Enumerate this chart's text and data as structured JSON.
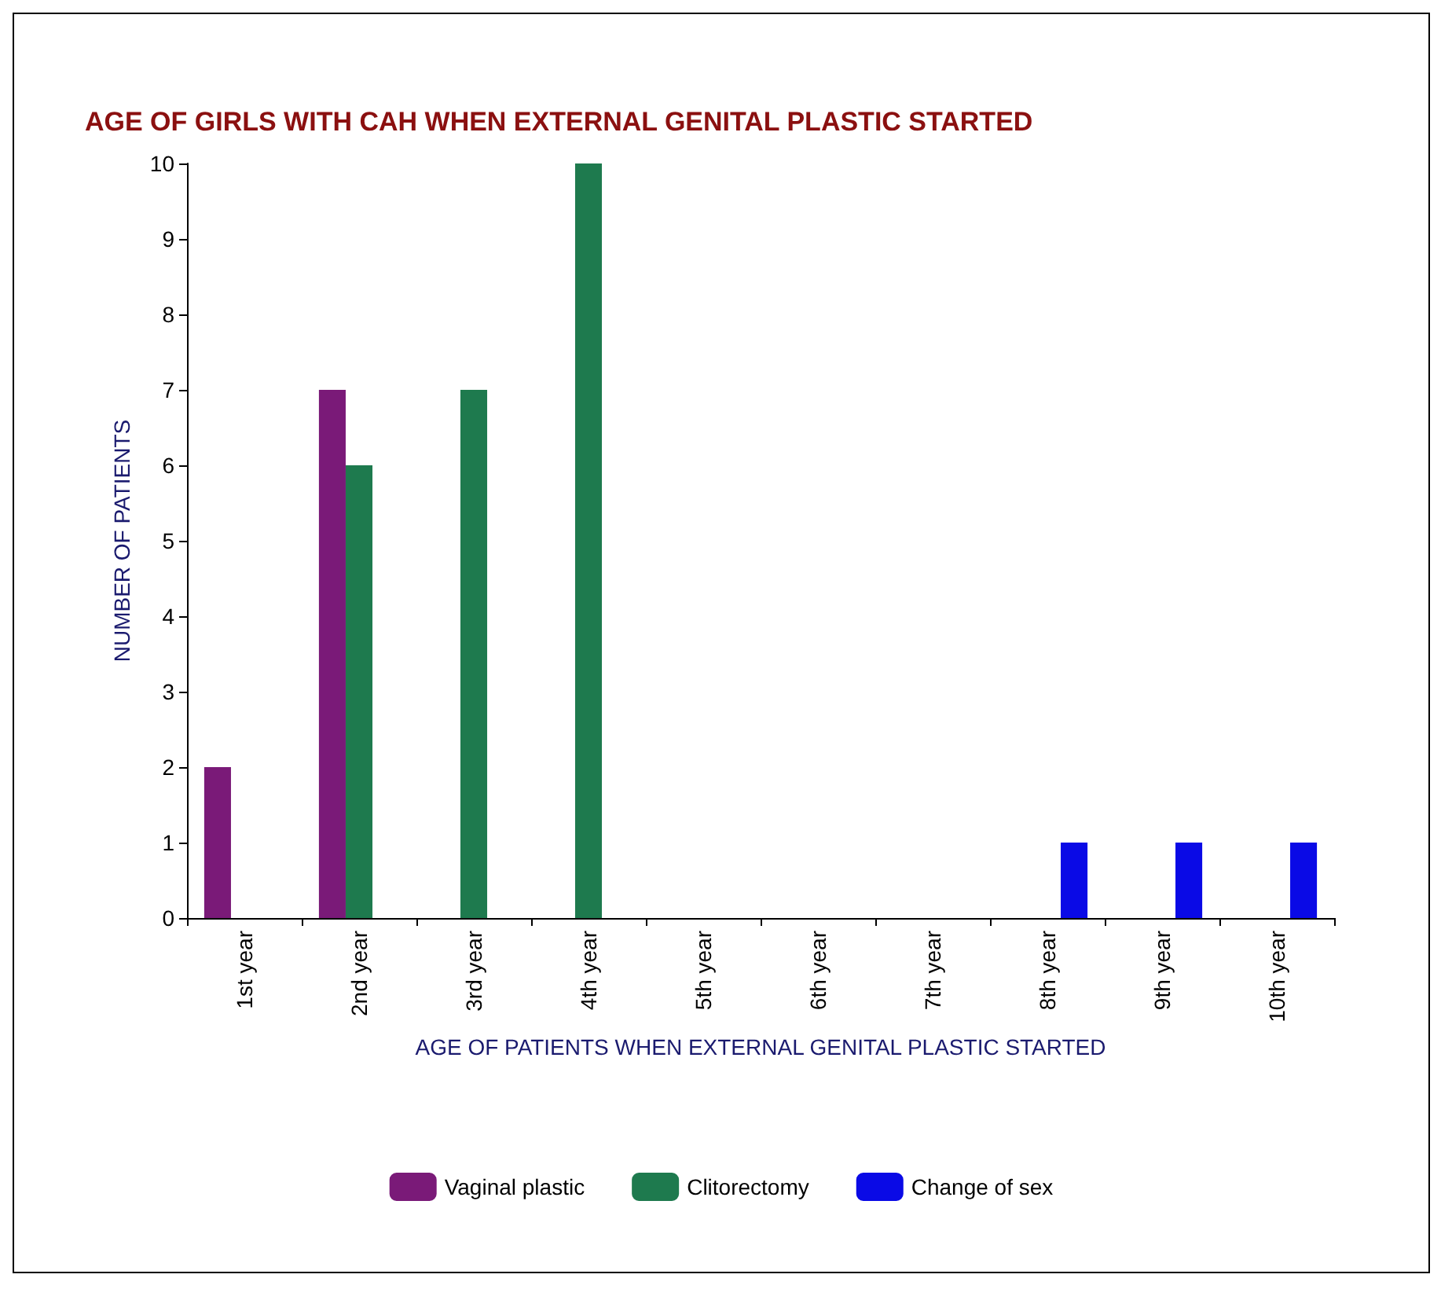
{
  "chart_data": {
    "type": "bar",
    "title": "AGE OF GIRLS WITH CAH WHEN EXTERNAL GENITAL PLASTIC STARTED",
    "xlabel": "AGE OF PATIENTS WHEN EXTERNAL GENITAL PLASTIC STARTED",
    "ylabel": "NUMBER OF PATIENTS",
    "categories": [
      "1st year",
      "2nd year",
      "3rd year",
      "4th year",
      "5th year",
      "6th year",
      "7th year",
      "8th year",
      "9th year",
      "10th year"
    ],
    "series": [
      {
        "name": "Vaginal plastic",
        "color": "#7a1a78",
        "values": [
          2,
          7,
          0,
          0,
          0,
          0,
          0,
          0,
          0,
          0
        ]
      },
      {
        "name": "Clitorectomy",
        "color": "#1e7a4e",
        "values": [
          0,
          6,
          7,
          10,
          0,
          0,
          0,
          0,
          0,
          0
        ]
      },
      {
        "name": "Change of sex",
        "color": "#0a0ae6",
        "values": [
          0,
          0,
          0,
          0,
          0,
          0,
          0,
          1,
          1,
          1
        ]
      }
    ],
    "ylim": [
      0,
      10
    ],
    "yticks": [
      0,
      1,
      2,
      3,
      4,
      5,
      6,
      7,
      8,
      9,
      10
    ],
    "grid": false,
    "legend": "bottom"
  }
}
